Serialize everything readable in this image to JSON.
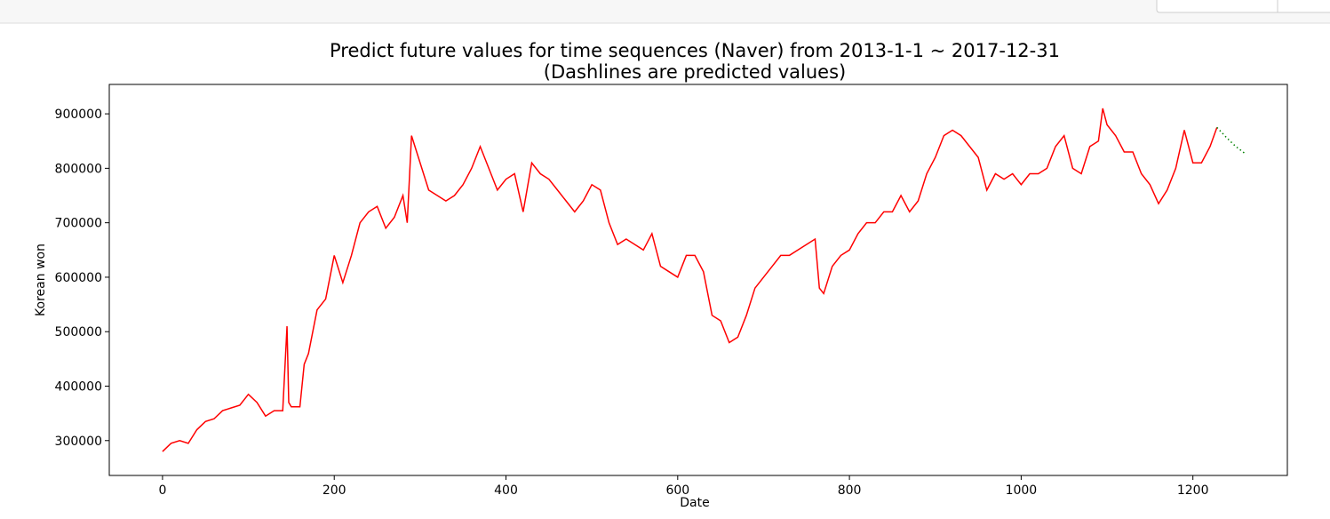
{
  "chart_data": {
    "type": "line",
    "title": "Predict future values for time sequences (Naver) from 2013-1-1 ~ 2017-12-31",
    "subtitle": "(Dashlines are predicted values)",
    "x_label": "Date",
    "y_label": "Korean won",
    "xlim": [
      -62,
      1310
    ],
    "ylim": [
      236000,
      954000
    ],
    "xticks": [
      0,
      200,
      400,
      600,
      800,
      1000,
      1200
    ],
    "yticks": [
      300000,
      400000,
      500000,
      600000,
      700000,
      800000,
      900000
    ],
    "series": [
      {
        "color": "#ff0000",
        "style": "solid",
        "x": [
          0,
          10,
          20,
          30,
          40,
          50,
          60,
          70,
          80,
          90,
          100,
          110,
          120,
          130,
          140,
          145,
          147,
          150,
          160,
          165,
          170,
          180,
          190,
          200,
          210,
          220,
          230,
          240,
          250,
          260,
          270,
          280,
          285,
          290,
          300,
          310,
          320,
          330,
          340,
          350,
          360,
          370,
          380,
          390,
          400,
          410,
          420,
          430,
          440,
          450,
          460,
          470,
          480,
          490,
          500,
          510,
          520,
          530,
          540,
          550,
          560,
          570,
          580,
          590,
          600,
          610,
          620,
          630,
          640,
          650,
          660,
          670,
          680,
          690,
          700,
          710,
          720,
          730,
          740,
          750,
          760,
          765,
          770,
          780,
          790,
          800,
          810,
          820,
          830,
          840,
          850,
          860,
          870,
          880,
          890,
          900,
          910,
          920,
          930,
          940,
          950,
          960,
          970,
          980,
          990,
          1000,
          1010,
          1020,
          1030,
          1040,
          1050,
          1060,
          1070,
          1080,
          1090,
          1095,
          1100,
          1110,
          1120,
          1130,
          1140,
          1150,
          1160,
          1170,
          1180,
          1190,
          1200,
          1210,
          1220,
          1228
        ],
        "values": [
          280000,
          295000,
          300000,
          295000,
          320000,
          335000,
          340000,
          355000,
          360000,
          365000,
          385000,
          370000,
          345000,
          355000,
          355000,
          510000,
          370000,
          362000,
          362000,
          440000,
          460000,
          540000,
          560000,
          640000,
          590000,
          640000,
          700000,
          720000,
          730000,
          690000,
          710000,
          750000,
          700000,
          860000,
          810000,
          760000,
          750000,
          740000,
          750000,
          770000,
          800000,
          840000,
          800000,
          760000,
          780000,
          790000,
          720000,
          810000,
          790000,
          780000,
          760000,
          740000,
          720000,
          740000,
          770000,
          760000,
          700000,
          660000,
          670000,
          660000,
          650000,
          680000,
          620000,
          610000,
          600000,
          640000,
          640000,
          610000,
          530000,
          520000,
          480000,
          490000,
          530000,
          580000,
          600000,
          620000,
          640000,
          640000,
          650000,
          660000,
          670000,
          580000,
          570000,
          620000,
          640000,
          650000,
          680000,
          700000,
          700000,
          720000,
          720000,
          750000,
          720000,
          740000,
          790000,
          820000,
          860000,
          870000,
          860000,
          840000,
          820000,
          760000,
          790000,
          780000,
          790000,
          770000,
          790000,
          790000,
          800000,
          840000,
          860000,
          800000,
          790000,
          840000,
          850000,
          910000,
          880000,
          860000,
          830000,
          830000,
          790000,
          770000,
          735000,
          760000,
          800000,
          870000,
          810000,
          810000,
          840000,
          875000
        ]
      },
      {
        "color": "#008000",
        "style": "dotted",
        "x": [
          1228,
          1240,
          1250,
          1260
        ],
        "values": [
          875000,
          855000,
          840000,
          828000
        ]
      }
    ]
  }
}
